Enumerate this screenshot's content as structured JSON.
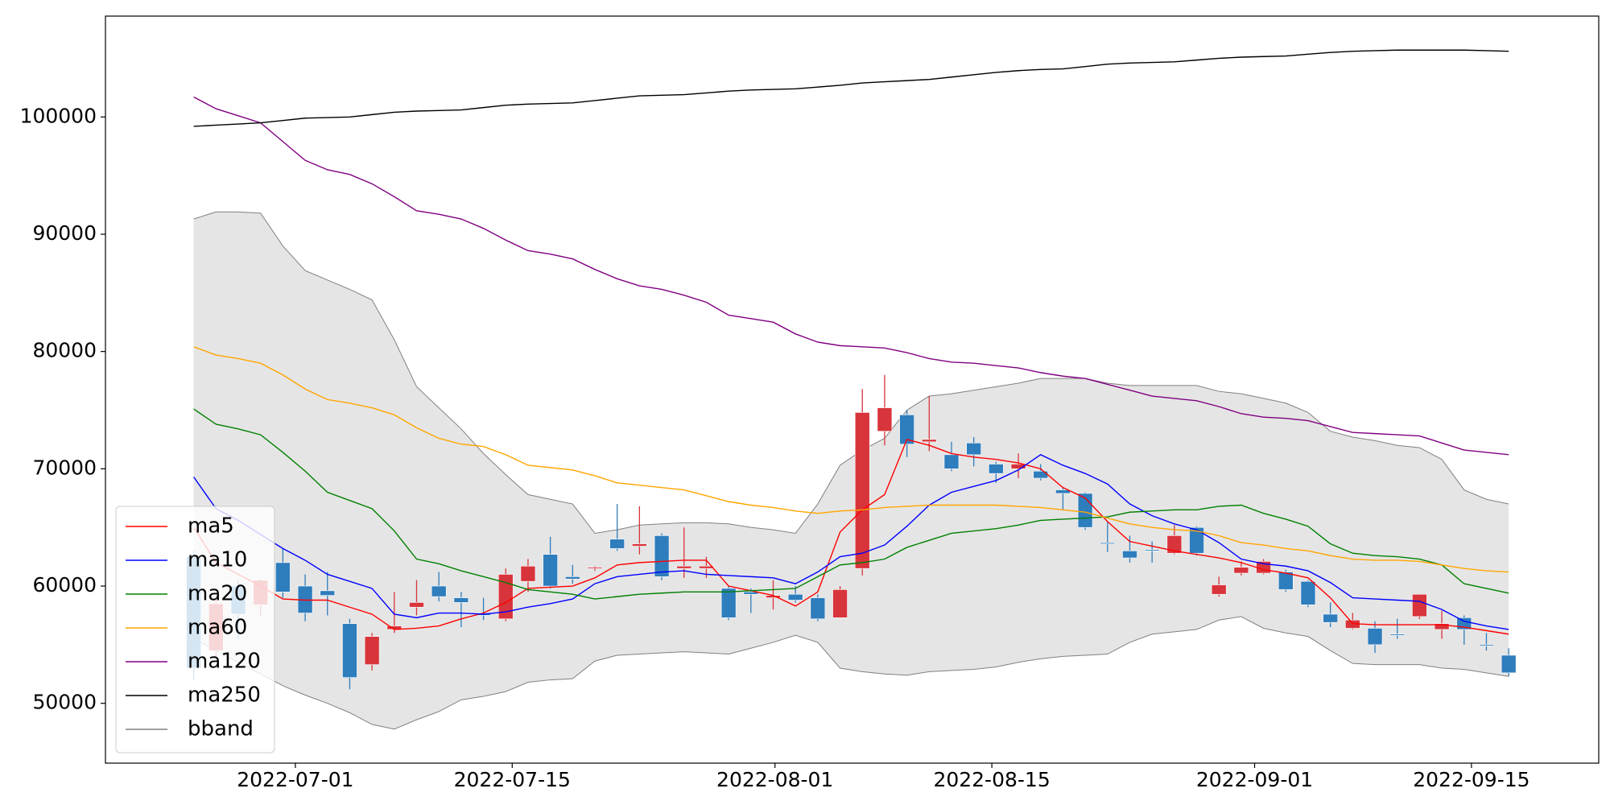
{
  "chart_data": {
    "type": "candlestick",
    "up_color": "#d8343b",
    "down_color": "#2e7dbd",
    "open": [
      62500,
      54500,
      60000,
      58400,
      62000,
      60000,
      59600,
      56800,
      53300,
      56300,
      58200,
      60000,
      59000,
      57700,
      57200,
      60400,
      62700,
      60800,
      61500,
      64000,
      63400,
      64300,
      61500,
      61500,
      59800,
      59500,
      59000,
      59300,
      59000,
      57300,
      61500,
      73200,
      74600,
      72300,
      71200,
      72200,
      70400,
      70000,
      69800,
      68200,
      67900,
      63700,
      63000,
      63100,
      62800,
      65000,
      59300,
      61100,
      61100,
      61200,
      60400,
      57600,
      56400,
      56400,
      55900,
      57400,
      56300,
      57300,
      55000,
      54100
    ],
    "high": [
      63000,
      59000,
      60500,
      60600,
      63200,
      61000,
      61200,
      57200,
      56000,
      59500,
      60500,
      61200,
      59500,
      59000,
      61500,
      62300,
      64200,
      61800,
      61700,
      67000,
      66800,
      64500,
      65000,
      62500,
      60000,
      59800,
      60500,
      60000,
      59300,
      60000,
      76800,
      78000,
      75000,
      76200,
      72300,
      72700,
      70600,
      71300,
      70400,
      68400,
      68000,
      65500,
      64300,
      63800,
      65200,
      65100,
      60800,
      62100,
      62300,
      61400,
      60500,
      58600,
      57700,
      57000,
      57200,
      59300,
      57900,
      57500,
      56000,
      54700
    ],
    "low": [
      52000,
      54000,
      55500,
      57500,
      59000,
      57000,
      57500,
      51200,
      52800,
      56000,
      57500,
      58700,
      56500,
      57100,
      57000,
      59500,
      59800,
      60200,
      61300,
      63000,
      62700,
      60500,
      60700,
      60700,
      57100,
      57700,
      58000,
      58600,
      57000,
      57300,
      60900,
      72000,
      71000,
      71500,
      69800,
      70200,
      68800,
      69200,
      69000,
      66500,
      64800,
      62900,
      62000,
      62000,
      62700,
      62600,
      59100,
      60900,
      61000,
      59500,
      58200,
      56500,
      56300,
      54300,
      55500,
      57200,
      55500,
      55000,
      54500,
      52300
    ],
    "close": [
      53000,
      58500,
      57600,
      60500,
      59500,
      57700,
      59200,
      52200,
      55700,
      56600,
      58600,
      59100,
      58600,
      57500,
      61000,
      61700,
      60000,
      60600,
      61600,
      63200,
      63600,
      60800,
      61700,
      61700,
      57300,
      59300,
      59200,
      58800,
      57200,
      59700,
      74800,
      75200,
      72100,
      72500,
      70000,
      71200,
      69600,
      70400,
      69200,
      67900,
      65000,
      63600,
      62400,
      63000,
      64300,
      62800,
      60100,
      61600,
      62100,
      59700,
      58400,
      56900,
      57100,
      55000,
      55800,
      59300,
      56800,
      56300,
      54900,
      52600
    ],
    "series": [
      {
        "name": "ma5",
        "color": "#ff0000",
        "values": [
          65000,
          62000,
          61000,
          60000,
          58900,
          58800,
          58800,
          58200,
          57600,
          56300,
          56400,
          56600,
          57200,
          57700,
          58600,
          59800,
          59900,
          60000,
          60700,
          61800,
          62000,
          62100,
          62200,
          62200,
          60000,
          59600,
          59200,
          58300,
          59500,
          64600,
          66500,
          67800,
          72500,
          72000,
          71300,
          71000,
          70800,
          70500,
          70000,
          68400,
          67500,
          65500,
          63800,
          63400,
          63000,
          62700,
          62400,
          62000,
          61400,
          61100,
          60700,
          59000,
          56800,
          56700,
          56700,
          56700,
          56700,
          56500,
          56200,
          55900
        ]
      },
      {
        "name": "ma10",
        "color": "#0000ff",
        "values": [
          69300,
          66600,
          65600,
          64400,
          63200,
          62200,
          61000,
          60400,
          59800,
          57600,
          57300,
          57700,
          57700,
          57600,
          57800,
          58200,
          58500,
          58900,
          60200,
          60800,
          61000,
          61200,
          61300,
          61000,
          60900,
          60800,
          60700,
          60200,
          61200,
          62500,
          62800,
          63500,
          65100,
          66900,
          68000,
          68500,
          69000,
          69900,
          71200,
          70300,
          69600,
          68700,
          67000,
          66000,
          65300,
          64800,
          63700,
          62300,
          61900,
          61700,
          61300,
          60300,
          59000,
          58900,
          58800,
          58700,
          58000,
          57000,
          56600,
          56300
        ]
      },
      {
        "name": "ma20",
        "color": "#008000",
        "values": [
          75100,
          73800,
          73400,
          72900,
          71400,
          69800,
          68000,
          67300,
          66600,
          64700,
          62300,
          61900,
          61300,
          60800,
          60300,
          59700,
          59500,
          59300,
          58900,
          59100,
          59300,
          59400,
          59500,
          59500,
          59500,
          59600,
          59700,
          59800,
          60800,
          61800,
          62000,
          62300,
          63300,
          63900,
          64500,
          64700,
          64900,
          65200,
          65600,
          65700,
          65800,
          65900,
          66300,
          66400,
          66500,
          66500,
          66800,
          66900,
          66200,
          65700,
          65100,
          63600,
          62800,
          62600,
          62500,
          62300,
          61800,
          60200,
          59800,
          59400
        ]
      },
      {
        "name": "ma60",
        "color": "#ffa500",
        "values": [
          80400,
          79700,
          79400,
          79000,
          78000,
          76800,
          75900,
          75600,
          75200,
          74600,
          73500,
          72600,
          72100,
          71900,
          71200,
          70300,
          70100,
          69900,
          69400,
          68800,
          68600,
          68400,
          68200,
          67700,
          67200,
          66900,
          66700,
          66400,
          66200,
          66400,
          66500,
          66700,
          66800,
          66900,
          66900,
          66900,
          66900,
          66800,
          66700,
          66500,
          66300,
          65800,
          65300,
          65000,
          64800,
          64700,
          64300,
          63700,
          63500,
          63200,
          63000,
          62600,
          62300,
          62200,
          62200,
          62100,
          61800,
          61500,
          61300,
          61200
        ]
      },
      {
        "name": "ma120",
        "color": "#800080",
        "values": [
          101700,
          100700,
          100100,
          99500,
          97900,
          96300,
          95500,
          95100,
          94300,
          93200,
          92000,
          91700,
          91300,
          90500,
          89500,
          88600,
          88300,
          87900,
          87000,
          86200,
          85600,
          85300,
          84800,
          84200,
          83100,
          82800,
          82500,
          81500,
          80800,
          80500,
          80400,
          80300,
          79900,
          79400,
          79100,
          79000,
          78800,
          78600,
          78200,
          77900,
          77700,
          77200,
          76700,
          76200,
          76000,
          75800,
          75300,
          74700,
          74400,
          74300,
          74100,
          73600,
          73100,
          73000,
          72900,
          72800,
          72200,
          71600,
          71400,
          71200
        ]
      },
      {
        "name": "ma250",
        "color": "#000000",
        "values": [
          99200,
          99300,
          99400,
          99500,
          99700,
          99900,
          99950,
          100000,
          100200,
          100400,
          100500,
          100550,
          100600,
          100800,
          101000,
          101100,
          101150,
          101200,
          101400,
          101600,
          101800,
          101850,
          101900,
          102050,
          102200,
          102300,
          102350,
          102400,
          102550,
          102700,
          102900,
          103000,
          103100,
          103200,
          103400,
          103600,
          103800,
          103950,
          104050,
          104100,
          104300,
          104500,
          104600,
          104650,
          104700,
          104850,
          105000,
          105100,
          105150,
          105200,
          105350,
          105500,
          105600,
          105650,
          105700,
          105700,
          105700,
          105700,
          105650,
          105600
        ]
      }
    ],
    "bband": {
      "name": "bband",
      "color": "#808080",
      "fill": "#e5e5e5",
      "upper": [
        91300,
        91900,
        91900,
        91800,
        89000,
        86900,
        86100,
        85300,
        84400,
        81000,
        77000,
        75200,
        73400,
        71300,
        69500,
        67800,
        67400,
        67000,
        64500,
        64800,
        65200,
        65300,
        65400,
        65400,
        65300,
        65000,
        64800,
        64500,
        67000,
        70300,
        71600,
        72600,
        75000,
        76200,
        76400,
        76700,
        77000,
        77300,
        77700,
        77700,
        77700,
        77300,
        77100,
        77100,
        77100,
        77100,
        76600,
        76400,
        76000,
        75600,
        74800,
        73200,
        72700,
        72400,
        72000,
        71800,
        70800,
        68200,
        67400,
        67000
      ],
      "lower": [
        55500,
        54500,
        53500,
        52500,
        51500,
        50700,
        50000,
        49200,
        48200,
        47800,
        48600,
        49300,
        50300,
        50600,
        51000,
        51800,
        52000,
        52100,
        53600,
        54100,
        54200,
        54300,
        54400,
        54300,
        54200,
        54700,
        55200,
        55800,
        55200,
        53000,
        52700,
        52500,
        52400,
        52700,
        52800,
        52900,
        53100,
        53500,
        53800,
        54000,
        54100,
        54200,
        55200,
        55900,
        56100,
        56300,
        57100,
        57400,
        56400,
        56000,
        55700,
        54500,
        53400,
        53300,
        53300,
        53300,
        53000,
        52900,
        52600,
        52300
      ]
    },
    "xlim": [
      -3.96,
      63.04
    ],
    "xticks": [
      {
        "value": 4.56,
        "label": "2022-07-01"
      },
      {
        "value": 14.29,
        "label": "2022-07-15"
      },
      {
        "value": 26.08,
        "label": "2022-08-01"
      },
      {
        "value": 35.81,
        "label": "2022-08-15"
      },
      {
        "value": 47.6,
        "label": "2022-09-01"
      },
      {
        "value": 57.33,
        "label": "2022-09-15"
      }
    ],
    "ylim": [
      44900,
      108600
    ],
    "yticks": [
      50000,
      60000,
      70000,
      80000,
      90000,
      100000
    ],
    "legend": "lower left"
  }
}
